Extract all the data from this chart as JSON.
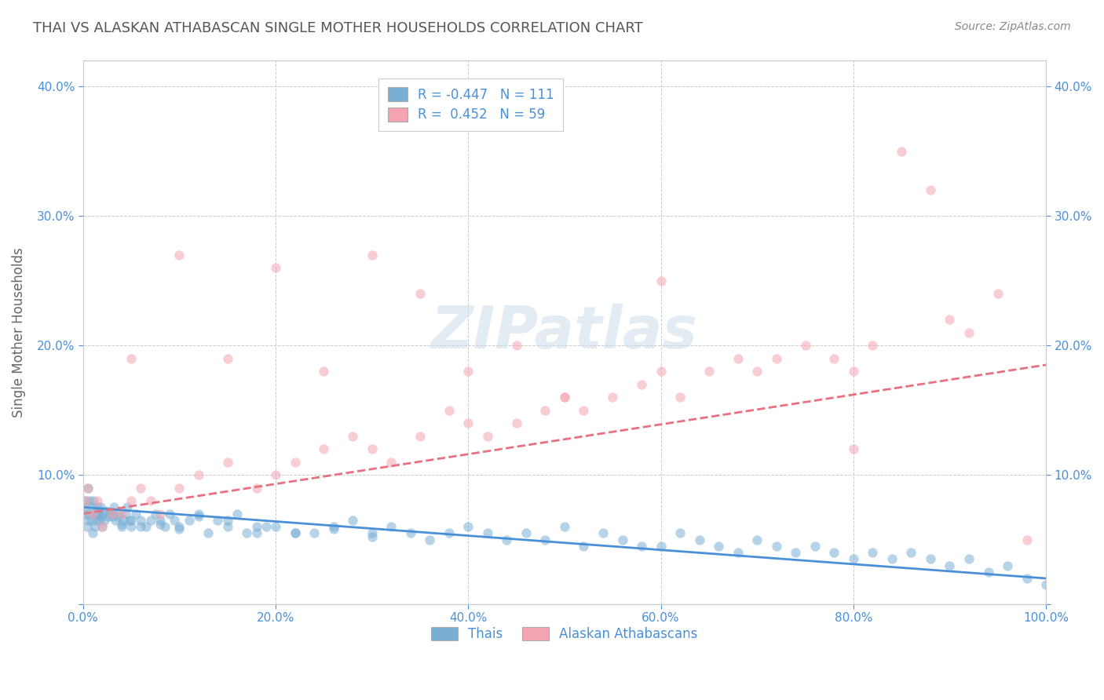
{
  "title": "THAI VS ALASKAN ATHABASCAN SINGLE MOTHER HOUSEHOLDS CORRELATION CHART",
  "source": "Source: ZipAtlas.com",
  "ylabel": "Single Mother Households",
  "bg_color": "#ffffff",
  "grid_color": "#cccccc",
  "thai_color": "#7aafd4",
  "athabascan_color": "#f4a4b0",
  "thai_line_color": "#4a90d9",
  "athabascan_line_color": "#e87080",
  "legend_text_color": "#4a90d9",
  "title_color": "#555555",
  "yaxis_label_color": "#666666",
  "tick_color": "#4a90d9",
  "legend_r_thai": "-0.447",
  "legend_n_thai": "111",
  "legend_r_ath": "0.452",
  "legend_n_ath": "59",
  "thai_scatter_x": [
    0.001,
    0.002,
    0.003,
    0.004,
    0.005,
    0.006,
    0.007,
    0.008,
    0.009,
    0.01,
    0.011,
    0.012,
    0.013,
    0.014,
    0.015,
    0.016,
    0.017,
    0.018,
    0.019,
    0.02,
    0.022,
    0.024,
    0.026,
    0.028,
    0.03,
    0.032,
    0.034,
    0.036,
    0.038,
    0.04,
    0.042,
    0.044,
    0.046,
    0.048,
    0.05,
    0.055,
    0.06,
    0.065,
    0.07,
    0.075,
    0.08,
    0.085,
    0.09,
    0.095,
    0.1,
    0.11,
    0.12,
    0.13,
    0.14,
    0.15,
    0.16,
    0.17,
    0.18,
    0.19,
    0.2,
    0.22,
    0.24,
    0.26,
    0.28,
    0.3,
    0.32,
    0.34,
    0.36,
    0.38,
    0.4,
    0.42,
    0.44,
    0.46,
    0.48,
    0.5,
    0.52,
    0.54,
    0.56,
    0.58,
    0.6,
    0.62,
    0.64,
    0.66,
    0.68,
    0.7,
    0.72,
    0.74,
    0.76,
    0.78,
    0.8,
    0.82,
    0.84,
    0.86,
    0.88,
    0.9,
    0.92,
    0.94,
    0.96,
    0.98,
    1.0,
    0.005,
    0.01,
    0.015,
    0.02,
    0.03,
    0.04,
    0.05,
    0.06,
    0.08,
    0.1,
    0.12,
    0.15,
    0.18,
    0.22,
    0.26,
    0.3
  ],
  "thai_scatter_y": [
    0.075,
    0.07,
    0.08,
    0.06,
    0.09,
    0.07,
    0.08,
    0.065,
    0.075,
    0.07,
    0.08,
    0.06,
    0.07,
    0.065,
    0.075,
    0.07,
    0.065,
    0.075,
    0.068,
    0.07,
    0.065,
    0.072,
    0.068,
    0.071,
    0.07,
    0.075,
    0.065,
    0.068,
    0.07,
    0.06,
    0.065,
    0.07,
    0.075,
    0.065,
    0.06,
    0.07,
    0.065,
    0.06,
    0.065,
    0.07,
    0.065,
    0.06,
    0.07,
    0.065,
    0.06,
    0.065,
    0.07,
    0.055,
    0.065,
    0.06,
    0.07,
    0.055,
    0.055,
    0.06,
    0.06,
    0.055,
    0.055,
    0.06,
    0.065,
    0.055,
    0.06,
    0.055,
    0.05,
    0.055,
    0.06,
    0.055,
    0.05,
    0.055,
    0.05,
    0.06,
    0.045,
    0.055,
    0.05,
    0.045,
    0.045,
    0.055,
    0.05,
    0.045,
    0.04,
    0.05,
    0.045,
    0.04,
    0.045,
    0.04,
    0.035,
    0.04,
    0.035,
    0.04,
    0.035,
    0.03,
    0.035,
    0.025,
    0.03,
    0.02,
    0.015,
    0.065,
    0.055,
    0.07,
    0.06,
    0.068,
    0.062,
    0.065,
    0.06,
    0.062,
    0.058,
    0.068,
    0.065,
    0.06,
    0.055,
    0.058,
    0.052
  ],
  "ath_scatter_x": [
    0.003,
    0.005,
    0.01,
    0.015,
    0.02,
    0.03,
    0.04,
    0.05,
    0.06,
    0.07,
    0.08,
    0.1,
    0.12,
    0.15,
    0.18,
    0.2,
    0.22,
    0.25,
    0.28,
    0.3,
    0.32,
    0.35,
    0.38,
    0.4,
    0.42,
    0.45,
    0.48,
    0.5,
    0.52,
    0.55,
    0.58,
    0.6,
    0.62,
    0.65,
    0.68,
    0.7,
    0.72,
    0.75,
    0.78,
    0.8,
    0.82,
    0.85,
    0.88,
    0.9,
    0.92,
    0.95,
    0.98,
    0.05,
    0.1,
    0.15,
    0.2,
    0.25,
    0.3,
    0.35,
    0.4,
    0.45,
    0.5,
    0.6,
    0.8
  ],
  "ath_scatter_y": [
    0.08,
    0.09,
    0.07,
    0.08,
    0.06,
    0.07,
    0.07,
    0.08,
    0.09,
    0.08,
    0.07,
    0.09,
    0.1,
    0.11,
    0.09,
    0.1,
    0.11,
    0.12,
    0.13,
    0.12,
    0.11,
    0.13,
    0.15,
    0.14,
    0.13,
    0.14,
    0.15,
    0.16,
    0.15,
    0.16,
    0.17,
    0.18,
    0.16,
    0.18,
    0.19,
    0.18,
    0.19,
    0.2,
    0.19,
    0.18,
    0.2,
    0.35,
    0.32,
    0.22,
    0.21,
    0.24,
    0.05,
    0.19,
    0.27,
    0.19,
    0.26,
    0.18,
    0.27,
    0.24,
    0.18,
    0.2,
    0.16,
    0.25,
    0.12
  ],
  "thai_line_x": [
    0.0,
    1.0
  ],
  "thai_line_y": [
    0.075,
    0.02
  ],
  "ath_line_x": [
    0.0,
    1.0
  ],
  "ath_line_y": [
    0.07,
    0.185
  ],
  "xlim": [
    0.0,
    1.0
  ],
  "ylim": [
    0.0,
    0.42
  ],
  "yticks": [
    0.0,
    0.1,
    0.2,
    0.3,
    0.4
  ],
  "xticks": [
    0.0,
    0.2,
    0.4,
    0.6,
    0.8,
    1.0
  ],
  "xtick_labels": [
    "0.0%",
    "20.0%",
    "40.0%",
    "60.0%",
    "80.0%",
    "100.0%"
  ],
  "ytick_labels": [
    "",
    "10.0%",
    "20.0%",
    "30.0%",
    "40.0%"
  ],
  "watermark": "ZIPatlas",
  "scatter_alpha": 0.55,
  "scatter_size": 80,
  "line_width": 2.0
}
